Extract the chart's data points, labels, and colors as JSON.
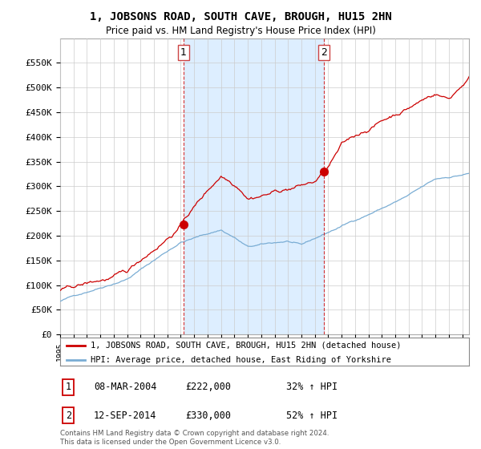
{
  "title": "1, JOBSONS ROAD, SOUTH CAVE, BROUGH, HU15 2HN",
  "subtitle": "Price paid vs. HM Land Registry's House Price Index (HPI)",
  "property_label": "1, JOBSONS ROAD, SOUTH CAVE, BROUGH, HU15 2HN (detached house)",
  "hpi_label": "HPI: Average price, detached house, East Riding of Yorkshire",
  "transaction1_date": "08-MAR-2004",
  "transaction1_price": "£222,000",
  "transaction1_hpi": "32% ↑ HPI",
  "transaction2_date": "12-SEP-2014",
  "transaction2_price": "£330,000",
  "transaction2_hpi": "52% ↑ HPI",
  "property_color": "#cc0000",
  "hpi_color": "#7aadd4",
  "shade_color": "#ddeeff",
  "background_color": "#ffffff",
  "grid_color": "#cccccc",
  "footer_text": "Contains HM Land Registry data © Crown copyright and database right 2024.\nThis data is licensed under the Open Government Licence v3.0.",
  "ylim": [
    0,
    600000
  ],
  "yticks": [
    0,
    50000,
    100000,
    150000,
    200000,
    250000,
    300000,
    350000,
    400000,
    450000,
    500000,
    550000
  ],
  "ytick_labels": [
    "£0",
    "£50K",
    "£100K",
    "£150K",
    "£200K",
    "£250K",
    "£300K",
    "£350K",
    "£400K",
    "£450K",
    "£500K",
    "£550K"
  ],
  "transaction1_year": 2004.2,
  "transaction1_value": 222000,
  "transaction2_year": 2014.7,
  "transaction2_value": 330000,
  "seed": 42
}
